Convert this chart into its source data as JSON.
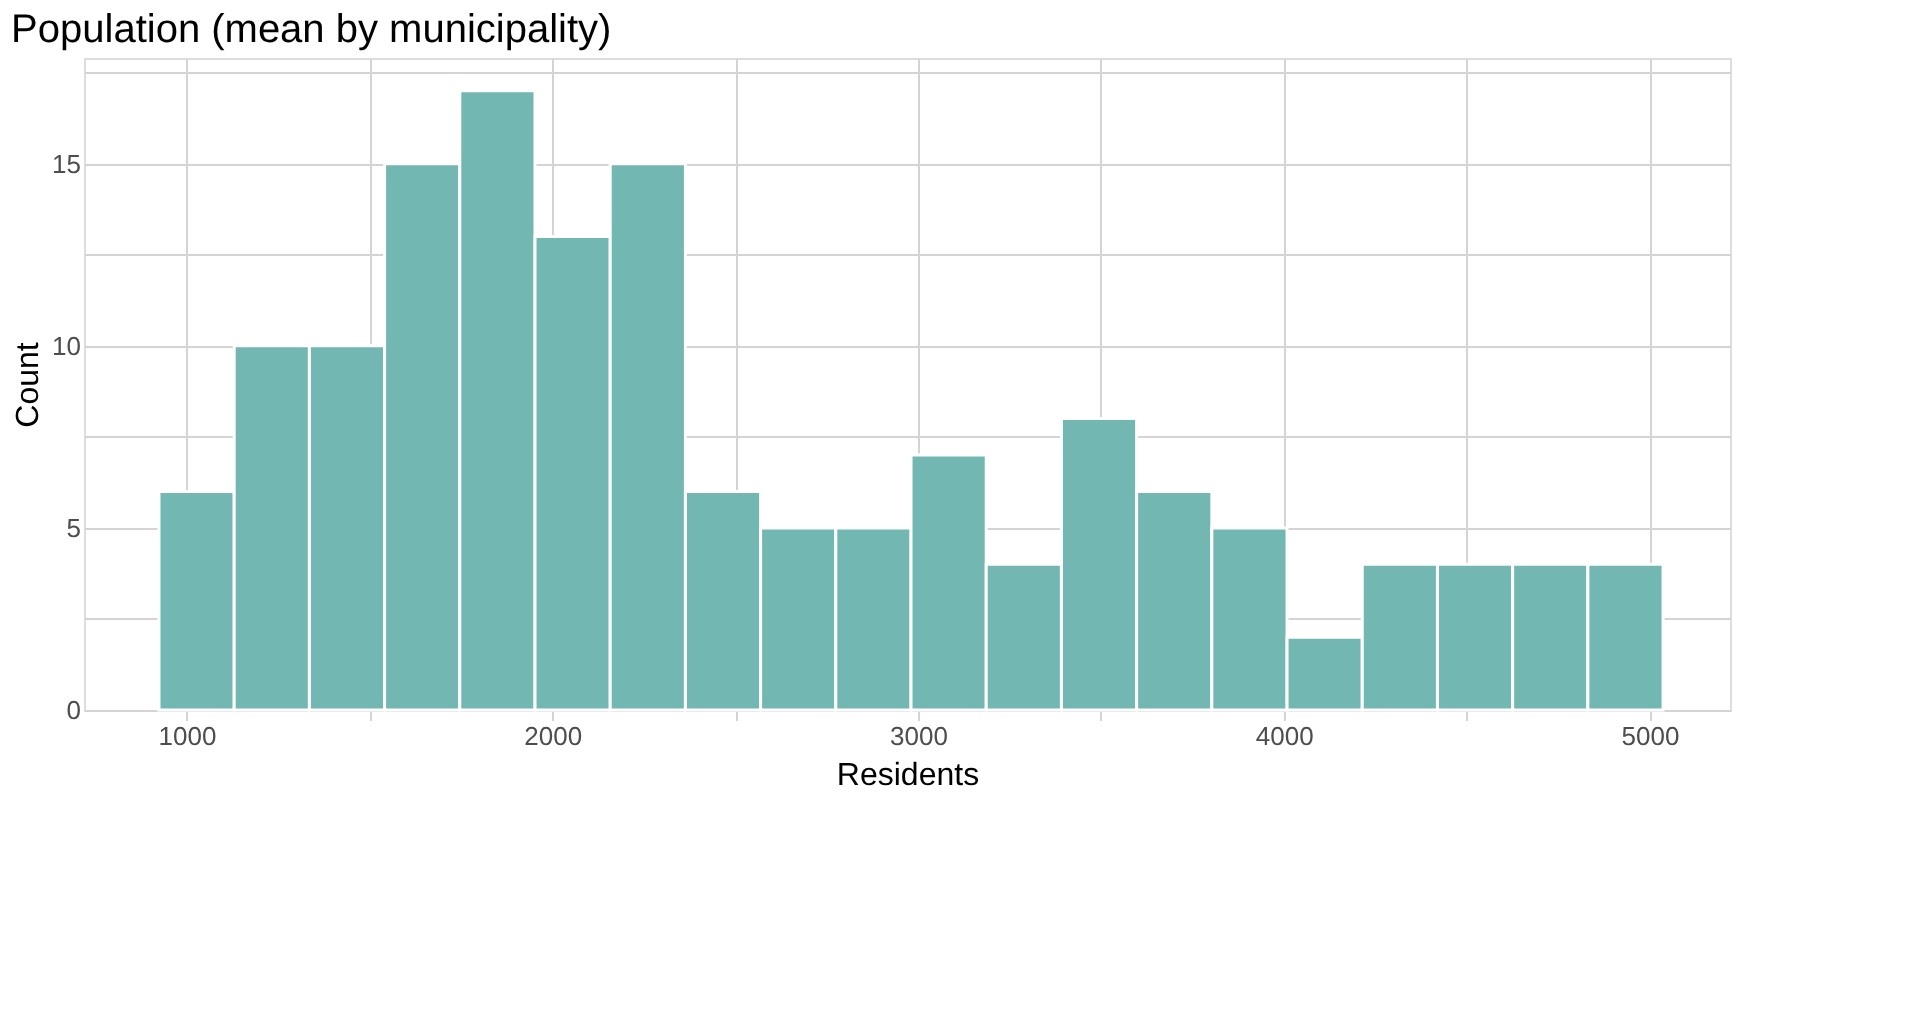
{
  "chart_data": {
    "type": "histogram",
    "title": "Population (mean by municipality)",
    "xlabel": "Residents",
    "ylabel": "Count",
    "bins": [
      925,
      1130.6,
      1336.2,
      1541.8,
      1747.4,
      1953,
      2158.6,
      2364.2,
      2569.8,
      2775.4,
      2981,
      3186.6,
      3392.2,
      3597.8,
      3803.4,
      4009,
      4214.6,
      4420.2,
      4625.8,
      4831.4,
      5037
    ],
    "values": [
      6,
      10,
      10,
      15,
      17,
      13,
      15,
      6,
      5,
      5,
      7,
      4,
      8,
      6,
      5,
      2,
      4,
      4,
      4,
      4
    ],
    "color": "#72b7b2",
    "xlim": [
      720,
      5220
    ],
    "xticks": [
      1000,
      {
        "value": 1500,
        "label": null
      },
      2000,
      {
        "value": 2500,
        "label": null
      },
      3000,
      {
        "value": 3500,
        "label": null
      },
      4000,
      {
        "value": 4500,
        "label": null
      },
      5000
    ],
    "ylim": [
      0,
      17.9
    ],
    "yticks": [
      0,
      {
        "value": 2.5,
        "label": null
      },
      5,
      {
        "value": 7.5,
        "label": null
      },
      10,
      {
        "value": 12.5,
        "label": null
      },
      15,
      {
        "value": 17.5,
        "label": null
      }
    ],
    "grid": true
  }
}
